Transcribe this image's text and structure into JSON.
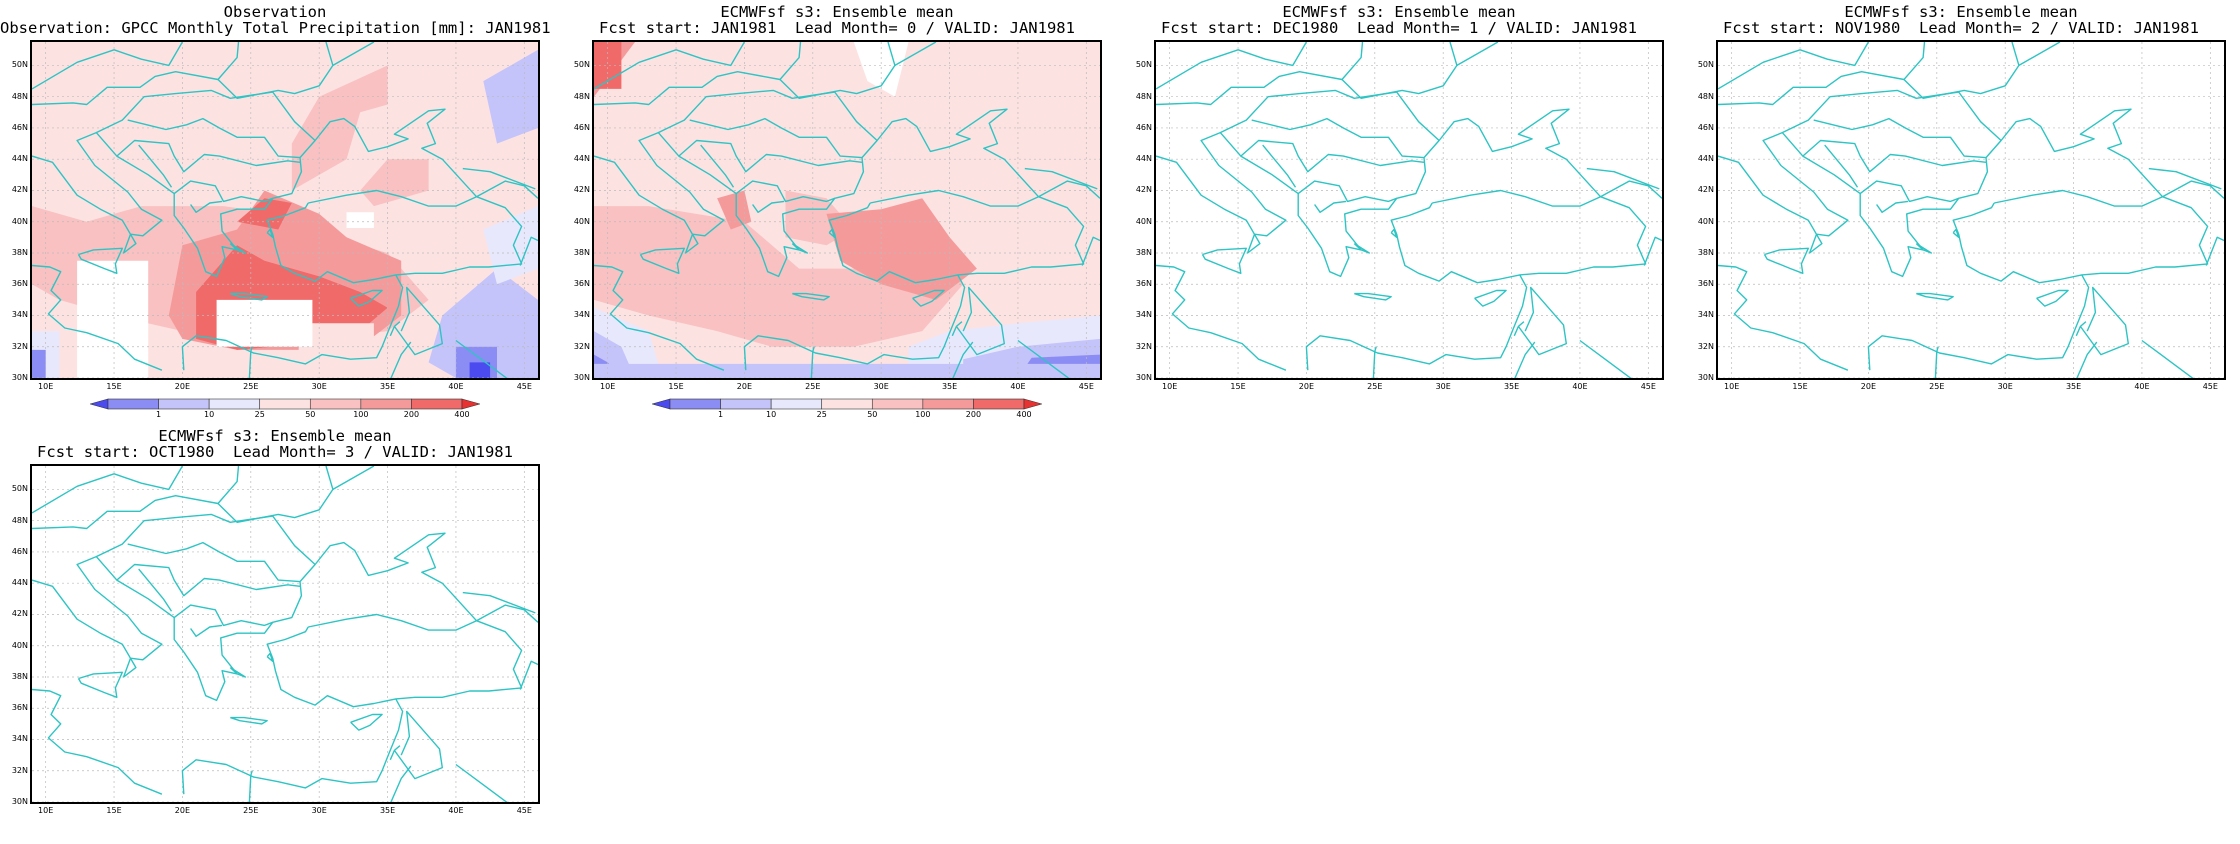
{
  "panels": [
    {
      "title1": "Observation",
      "title2": "Observation: GPCC Monthly Total Precipitation [mm]: JAN1981",
      "has_field": true,
      "has_colorbar": true,
      "field": "obs"
    },
    {
      "title1": "ECMWFsf s3: Ensemble mean",
      "title2": "Fcst start: JAN1981  Lead Month= 0 / VALID: JAN1981",
      "has_field": true,
      "has_colorbar": true,
      "field": "lead0"
    },
    {
      "title1": "ECMWFsf s3: Ensemble mean",
      "title2": "Fcst start: DEC1980  Lead Month= 1 / VALID: JAN1981",
      "has_field": false,
      "has_colorbar": false,
      "field": ""
    },
    {
      "title1": "ECMWFsf s3: Ensemble mean",
      "title2": "Fcst start: NOV1980  Lead Month= 2 / VALID: JAN1981",
      "has_field": false,
      "has_colorbar": false,
      "field": ""
    },
    {
      "title1": "ECMWFsf s3: Ensemble mean",
      "title2": "Fcst start: OCT1980  Lead Month= 3 / VALID: JAN1981",
      "has_field": false,
      "has_colorbar": false,
      "field": ""
    }
  ],
  "map": {
    "lon_range": [
      9,
      46
    ],
    "lat_range": [
      30,
      51.5
    ],
    "lon_ticks": [
      "10E",
      "15E",
      "20E",
      "25E",
      "30E",
      "35E",
      "40E",
      "45E"
    ],
    "lon_tick_values": [
      10,
      15,
      20,
      25,
      30,
      35,
      40,
      45
    ],
    "lat_ticks": [
      "50N",
      "48N",
      "46N",
      "44N",
      "42N",
      "40N",
      "38N",
      "36N",
      "34N",
      "32N",
      "30N"
    ],
    "lat_tick_values": [
      50,
      48,
      46,
      44,
      42,
      40,
      38,
      36,
      34,
      32,
      30
    ],
    "grid": true,
    "coast_color": "#2ec4c4"
  },
  "colorbar": {
    "labels": [
      "1",
      "10",
      "25",
      "50",
      "100",
      "200",
      "400"
    ],
    "colors": [
      "#4b4bf0",
      "#8c8cf5",
      "#c4c4fa",
      "#e8e8fd",
      "#fde2e2",
      "#f9c1c1",
      "#f59a9a",
      "#f06a6a",
      "#e83232"
    ]
  }
}
